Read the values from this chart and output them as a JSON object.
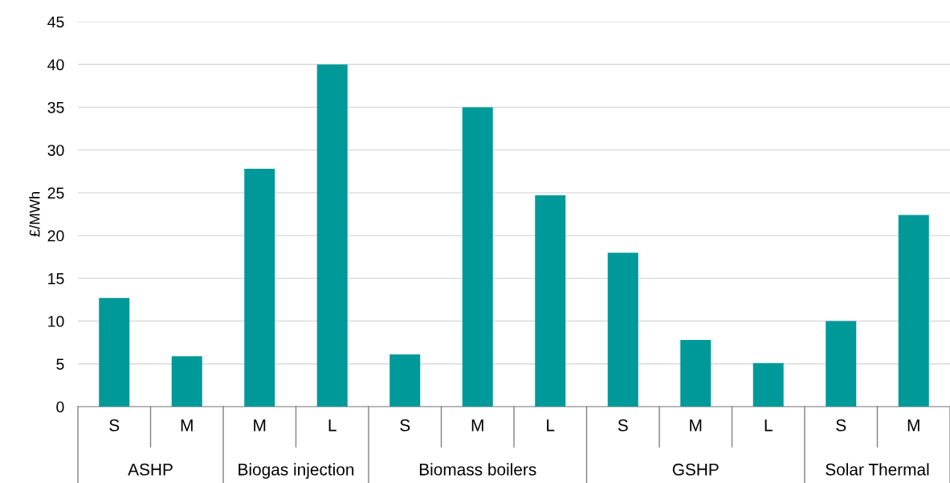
{
  "chart_data": {
    "type": "bar",
    "ylabel": "£/MWh",
    "categories": [
      "S",
      "M",
      "M",
      "L",
      "S",
      "M",
      "L",
      "S",
      "M",
      "L",
      "S",
      "M"
    ],
    "values": [
      12.7,
      5.9,
      27.8,
      40.0,
      6.1,
      35.0,
      24.7,
      18.0,
      7.8,
      5.1,
      10.0,
      22.4
    ],
    "color": "#009999",
    "ylim": [
      0,
      45
    ],
    "yticks": [
      0,
      5,
      10,
      15,
      20,
      25,
      30,
      35,
      40,
      45
    ],
    "grid": "y",
    "annotations": [
      "ASHP",
      "Biogas injection",
      "Biomass boilers",
      "GSHP",
      "Solar Thermal"
    ]
  }
}
